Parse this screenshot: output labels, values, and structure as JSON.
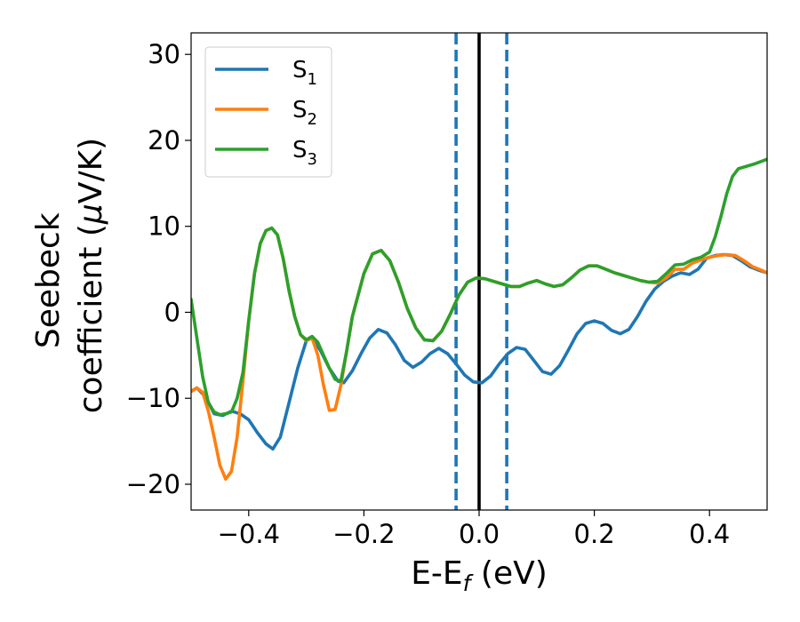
{
  "chart_data": {
    "type": "line",
    "xlabel": "E-E",
    "xlabel_sub": "f",
    "xlabel_unit": " (eV)",
    "ylabel_line1": "Seebeck",
    "ylabel_line2_pre": "coefficient  (",
    "ylabel_mu": "μ",
    "ylabel_line2_post": "V/K)",
    "xlim": [
      -0.5,
      0.5
    ],
    "ylim": [
      -23,
      32.5
    ],
    "xticks": [
      -0.4,
      -0.2,
      0.0,
      0.2,
      0.4
    ],
    "xtick_labels": [
      "−0.4",
      "−0.2",
      "0.0",
      "0.2",
      "0.4"
    ],
    "yticks": [
      -20,
      -10,
      0,
      10,
      20,
      30
    ],
    "ytick_labels": [
      "−20",
      "−10",
      "0",
      "10",
      "20",
      "30"
    ],
    "grid": false,
    "legend_position": "top-left",
    "vlines": [
      {
        "x": 0.0,
        "style": "solid",
        "color": "#000000"
      },
      {
        "x": -0.04,
        "style": "dashed",
        "color": "#1f77b4"
      },
      {
        "x": 0.048,
        "style": "dashed",
        "color": "#1f77b4"
      }
    ],
    "series": [
      {
        "name": "S",
        "name_sub": "1",
        "color": "#1f77b4",
        "points": [
          [
            -0.5,
            -9.2
          ],
          [
            -0.49,
            -8.8
          ],
          [
            -0.475,
            -9.8
          ],
          [
            -0.46,
            -11.8
          ],
          [
            -0.445,
            -12.0
          ],
          [
            -0.43,
            -11.5
          ],
          [
            -0.415,
            -11.8
          ],
          [
            -0.4,
            -12.5
          ],
          [
            -0.385,
            -14.0
          ],
          [
            -0.37,
            -15.3
          ],
          [
            -0.358,
            -15.9
          ],
          [
            -0.345,
            -14.5
          ],
          [
            -0.33,
            -10.5
          ],
          [
            -0.315,
            -6.5
          ],
          [
            -0.3,
            -3.3
          ],
          [
            -0.29,
            -2.9
          ],
          [
            -0.275,
            -4.5
          ],
          [
            -0.26,
            -6.5
          ],
          [
            -0.245,
            -8.0
          ],
          [
            -0.235,
            -8.2
          ],
          [
            -0.22,
            -6.8
          ],
          [
            -0.205,
            -4.8
          ],
          [
            -0.19,
            -3.0
          ],
          [
            -0.175,
            -2.0
          ],
          [
            -0.16,
            -2.4
          ],
          [
            -0.145,
            -3.8
          ],
          [
            -0.13,
            -5.6
          ],
          [
            -0.115,
            -6.4
          ],
          [
            -0.1,
            -5.8
          ],
          [
            -0.085,
            -4.8
          ],
          [
            -0.07,
            -4.2
          ],
          [
            -0.055,
            -4.8
          ],
          [
            -0.04,
            -6.0
          ],
          [
            -0.025,
            -7.3
          ],
          [
            -0.01,
            -8.1
          ],
          [
            0.005,
            -8.2
          ],
          [
            0.02,
            -7.4
          ],
          [
            0.035,
            -6.0
          ],
          [
            0.05,
            -4.8
          ],
          [
            0.065,
            -4.1
          ],
          [
            0.08,
            -4.3
          ],
          [
            0.095,
            -5.6
          ],
          [
            0.11,
            -6.9
          ],
          [
            0.125,
            -7.2
          ],
          [
            0.14,
            -6.2
          ],
          [
            0.155,
            -4.4
          ],
          [
            0.17,
            -2.5
          ],
          [
            0.185,
            -1.3
          ],
          [
            0.2,
            -1.0
          ],
          [
            0.215,
            -1.3
          ],
          [
            0.23,
            -2.1
          ],
          [
            0.245,
            -2.5
          ],
          [
            0.26,
            -2.0
          ],
          [
            0.275,
            -0.5
          ],
          [
            0.29,
            1.3
          ],
          [
            0.305,
            2.7
          ],
          [
            0.32,
            3.6
          ],
          [
            0.335,
            4.2
          ],
          [
            0.35,
            4.6
          ],
          [
            0.365,
            4.4
          ],
          [
            0.38,
            5.0
          ],
          [
            0.395,
            6.3
          ],
          [
            0.41,
            6.6
          ],
          [
            0.425,
            6.7
          ],
          [
            0.44,
            6.6
          ],
          [
            0.455,
            6.0
          ],
          [
            0.47,
            5.3
          ],
          [
            0.485,
            4.9
          ],
          [
            0.5,
            4.6
          ]
        ]
      },
      {
        "name": "S",
        "name_sub": "2",
        "color": "#ff7f0e",
        "points": [
          [
            -0.5,
            -9.2
          ],
          [
            -0.49,
            -8.8
          ],
          [
            -0.48,
            -9.3
          ],
          [
            -0.47,
            -11.5
          ],
          [
            -0.46,
            -14.5
          ],
          [
            -0.45,
            -17.8
          ],
          [
            -0.44,
            -19.4
          ],
          [
            -0.43,
            -18.5
          ],
          [
            -0.42,
            -14.5
          ],
          [
            -0.41,
            -8.0
          ],
          [
            -0.4,
            -1.0
          ],
          [
            -0.39,
            4.5
          ],
          [
            -0.38,
            8.0
          ],
          [
            -0.37,
            9.5
          ],
          [
            -0.36,
            9.8
          ],
          [
            -0.35,
            9.0
          ],
          [
            -0.34,
            6.2
          ],
          [
            -0.33,
            2.5
          ],
          [
            -0.32,
            -0.5
          ],
          [
            -0.31,
            -2.6
          ],
          [
            -0.3,
            -3.3
          ],
          [
            -0.29,
            -3.0
          ],
          [
            -0.28,
            -5.0
          ],
          [
            -0.27,
            -8.5
          ],
          [
            -0.26,
            -11.4
          ],
          [
            -0.25,
            -11.3
          ],
          [
            -0.24,
            -8.5
          ],
          [
            -0.23,
            -4.5
          ],
          [
            -0.22,
            -0.5
          ],
          [
            -0.2,
            4.5
          ],
          [
            -0.185,
            6.8
          ],
          [
            -0.17,
            7.2
          ],
          [
            -0.155,
            6.0
          ],
          [
            -0.14,
            3.5
          ],
          [
            -0.125,
            0.5
          ],
          [
            -0.11,
            -1.8
          ],
          [
            -0.095,
            -3.2
          ],
          [
            -0.08,
            -3.3
          ],
          [
            -0.065,
            -2.2
          ],
          [
            -0.05,
            -0.2
          ],
          [
            -0.035,
            2.0
          ],
          [
            -0.02,
            3.5
          ],
          [
            -0.005,
            4.0
          ],
          [
            0.01,
            3.9
          ],
          [
            0.025,
            3.6
          ],
          [
            0.04,
            3.3
          ],
          [
            0.055,
            3.0
          ],
          [
            0.07,
            3.0
          ],
          [
            0.085,
            3.4
          ],
          [
            0.1,
            3.7
          ],
          [
            0.115,
            3.3
          ],
          [
            0.13,
            3.0
          ],
          [
            0.145,
            3.2
          ],
          [
            0.16,
            4.0
          ],
          [
            0.175,
            4.9
          ],
          [
            0.19,
            5.4
          ],
          [
            0.205,
            5.4
          ],
          [
            0.22,
            5.0
          ],
          [
            0.235,
            4.6
          ],
          [
            0.25,
            4.3
          ],
          [
            0.265,
            4.0
          ],
          [
            0.28,
            3.7
          ],
          [
            0.295,
            3.5
          ],
          [
            0.31,
            3.4
          ],
          [
            0.325,
            4.0
          ],
          [
            0.34,
            5.0
          ],
          [
            0.355,
            5.0
          ],
          [
            0.37,
            5.7
          ],
          [
            0.385,
            6.1
          ],
          [
            0.4,
            6.4
          ],
          [
            0.415,
            6.6
          ],
          [
            0.43,
            6.7
          ],
          [
            0.445,
            6.6
          ],
          [
            0.46,
            6.0
          ],
          [
            0.475,
            5.3
          ],
          [
            0.49,
            4.9
          ],
          [
            0.5,
            4.6
          ]
        ]
      },
      {
        "name": "S",
        "name_sub": "3",
        "color": "#2ca02c",
        "points": [
          [
            -0.5,
            1.5
          ],
          [
            -0.49,
            -3.0
          ],
          [
            -0.48,
            -7.5
          ],
          [
            -0.47,
            -10.5
          ],
          [
            -0.46,
            -11.6
          ],
          [
            -0.45,
            -11.9
          ],
          [
            -0.44,
            -11.8
          ],
          [
            -0.43,
            -11.6
          ],
          [
            -0.42,
            -10.0
          ],
          [
            -0.41,
            -7.0
          ],
          [
            -0.4,
            -1.0
          ],
          [
            -0.39,
            4.5
          ],
          [
            -0.38,
            8.0
          ],
          [
            -0.37,
            9.5
          ],
          [
            -0.36,
            9.8
          ],
          [
            -0.35,
            9.0
          ],
          [
            -0.34,
            6.2
          ],
          [
            -0.33,
            2.5
          ],
          [
            -0.32,
            -0.5
          ],
          [
            -0.31,
            -2.6
          ],
          [
            -0.3,
            -3.2
          ],
          [
            -0.29,
            -2.8
          ],
          [
            -0.28,
            -3.5
          ],
          [
            -0.27,
            -5.0
          ],
          [
            -0.26,
            -6.5
          ],
          [
            -0.25,
            -7.8
          ],
          [
            -0.24,
            -8.0
          ],
          [
            -0.23,
            -4.5
          ],
          [
            -0.22,
            -0.5
          ],
          [
            -0.2,
            4.5
          ],
          [
            -0.185,
            6.8
          ],
          [
            -0.17,
            7.2
          ],
          [
            -0.155,
            6.0
          ],
          [
            -0.14,
            3.5
          ],
          [
            -0.125,
            0.5
          ],
          [
            -0.11,
            -1.8
          ],
          [
            -0.095,
            -3.2
          ],
          [
            -0.08,
            -3.3
          ],
          [
            -0.065,
            -2.2
          ],
          [
            -0.05,
            -0.2
          ],
          [
            -0.035,
            2.0
          ],
          [
            -0.02,
            3.5
          ],
          [
            -0.005,
            4.0
          ],
          [
            0.01,
            3.9
          ],
          [
            0.025,
            3.6
          ],
          [
            0.04,
            3.3
          ],
          [
            0.055,
            3.0
          ],
          [
            0.07,
            3.0
          ],
          [
            0.085,
            3.4
          ],
          [
            0.1,
            3.7
          ],
          [
            0.115,
            3.3
          ],
          [
            0.13,
            3.0
          ],
          [
            0.145,
            3.2
          ],
          [
            0.16,
            4.0
          ],
          [
            0.175,
            4.9
          ],
          [
            0.19,
            5.4
          ],
          [
            0.205,
            5.4
          ],
          [
            0.22,
            5.0
          ],
          [
            0.235,
            4.6
          ],
          [
            0.25,
            4.3
          ],
          [
            0.265,
            4.0
          ],
          [
            0.28,
            3.7
          ],
          [
            0.295,
            3.5
          ],
          [
            0.31,
            3.6
          ],
          [
            0.325,
            4.5
          ],
          [
            0.34,
            5.5
          ],
          [
            0.355,
            5.6
          ],
          [
            0.37,
            6.1
          ],
          [
            0.385,
            6.4
          ],
          [
            0.4,
            7.0
          ],
          [
            0.41,
            8.8
          ],
          [
            0.42,
            11.2
          ],
          [
            0.43,
            13.8
          ],
          [
            0.44,
            15.8
          ],
          [
            0.45,
            16.7
          ],
          [
            0.465,
            17.0
          ],
          [
            0.48,
            17.3
          ],
          [
            0.5,
            17.8
          ]
        ]
      }
    ]
  }
}
